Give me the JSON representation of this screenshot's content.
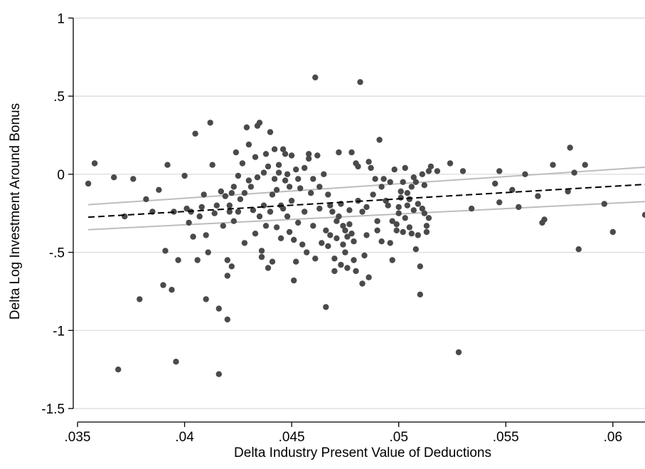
{
  "chart_data": {
    "type": "scatter",
    "title": "",
    "xlabel": "Delta Industry Present Value of Deductions",
    "ylabel": "Delta Log Investment Around Bonus",
    "xlim": [
      0.0348,
      0.0615
    ],
    "ylim": [
      -1.55,
      1.07
    ],
    "x_ticks": [
      0.035,
      0.04,
      0.045,
      0.05,
      0.055,
      0.06
    ],
    "x_tick_labels": [
      ".035",
      ".04",
      ".045",
      ".05",
      ".055",
      ".06"
    ],
    "y_ticks": [
      1,
      0.5,
      0,
      -0.5,
      -1,
      -1.5
    ],
    "y_tick_labels": [
      "1",
      ".5",
      "0",
      "-.5",
      "-1",
      "-1.5"
    ],
    "grid": true,
    "legend": "none",
    "colors": {
      "points": "#4a4a4a",
      "fit": "#000000",
      "ci": "#bdbdbd",
      "grid": "#d9d9d9"
    },
    "fit_line": {
      "x": [
        0.0355,
        0.0615
      ],
      "y": [
        -0.275,
        -0.065
      ]
    },
    "ci_upper": {
      "x": [
        0.0355,
        0.0615
      ],
      "y": [
        -0.195,
        0.045
      ]
    },
    "ci_lower": {
      "x": [
        0.0355,
        0.0615
      ],
      "y": [
        -0.355,
        -0.175
      ]
    },
    "points": [
      [
        0.0355,
        -0.06
      ],
      [
        0.0358,
        0.07
      ],
      [
        0.0367,
        -0.02
      ],
      [
        0.0369,
        -1.25
      ],
      [
        0.0372,
        -0.27
      ],
      [
        0.0376,
        -0.03
      ],
      [
        0.0379,
        -0.8
      ],
      [
        0.0382,
        -0.16
      ],
      [
        0.0385,
        -0.24
      ],
      [
        0.0388,
        -0.1
      ],
      [
        0.039,
        -0.71
      ],
      [
        0.0391,
        -0.49
      ],
      [
        0.0392,
        0.06
      ],
      [
        0.0394,
        -0.74
      ],
      [
        0.0395,
        -0.24
      ],
      [
        0.0396,
        -1.2
      ],
      [
        0.0397,
        -0.55
      ],
      [
        0.04,
        -0.01
      ],
      [
        0.0401,
        -0.22
      ],
      [
        0.0402,
        -0.31
      ],
      [
        0.0403,
        -0.24
      ],
      [
        0.0404,
        -0.4
      ],
      [
        0.0405,
        0.26
      ],
      [
        0.0406,
        -0.55
      ],
      [
        0.0407,
        -0.27
      ],
      [
        0.0408,
        -0.21
      ],
      [
        0.0409,
        -0.13
      ],
      [
        0.041,
        -0.8
      ],
      [
        0.041,
        -0.39
      ],
      [
        0.0411,
        -0.5
      ],
      [
        0.0412,
        0.33
      ],
      [
        0.0413,
        0.06
      ],
      [
        0.0414,
        -0.25
      ],
      [
        0.0415,
        -0.2
      ],
      [
        0.0416,
        -0.86
      ],
      [
        0.0416,
        -1.28
      ],
      [
        0.0417,
        -0.11
      ],
      [
        0.0418,
        -0.33
      ],
      [
        0.0419,
        -0.14
      ],
      [
        0.042,
        -0.55
      ],
      [
        0.042,
        -0.65
      ],
      [
        0.042,
        -0.93
      ],
      [
        0.0421,
        -0.2
      ],
      [
        0.0421,
        -0.24
      ],
      [
        0.0422,
        -0.59
      ],
      [
        0.0422,
        -0.12
      ],
      [
        0.0423,
        -0.08
      ],
      [
        0.0423,
        -0.3
      ],
      [
        0.0424,
        0.14
      ],
      [
        0.0425,
        -0.01
      ],
      [
        0.0425,
        -0.24
      ],
      [
        0.0426,
        -0.16
      ],
      [
        0.0427,
        0.07
      ],
      [
        0.0428,
        -0.12
      ],
      [
        0.0428,
        -0.44
      ],
      [
        0.0429,
        0.3
      ],
      [
        0.043,
        -0.04
      ],
      [
        0.043,
        0.19
      ],
      [
        0.0431,
        -0.08
      ],
      [
        0.0432,
        -0.23
      ],
      [
        0.0433,
        0.11
      ],
      [
        0.0433,
        -0.38
      ],
      [
        0.0434,
        -0.02
      ],
      [
        0.0434,
        0.31
      ],
      [
        0.0435,
        0.33
      ],
      [
        0.0435,
        -0.27
      ],
      [
        0.0436,
        -0.49
      ],
      [
        0.0436,
        -0.53
      ],
      [
        0.0437,
        0.01
      ],
      [
        0.0437,
        -0.2
      ],
      [
        0.0438,
        -0.33
      ],
      [
        0.0438,
        0.13
      ],
      [
        0.0439,
        0.05
      ],
      [
        0.0439,
        -0.6
      ],
      [
        0.044,
        -0.24
      ],
      [
        0.044,
        0.27
      ],
      [
        0.0441,
        -0.13
      ],
      [
        0.0441,
        -0.56
      ],
      [
        0.0442,
        0.16
      ],
      [
        0.0442,
        -0.03
      ],
      [
        0.0443,
        -0.1
      ],
      [
        0.0443,
        -0.34
      ],
      [
        0.0444,
        0.06
      ],
      [
        0.0444,
        0.01
      ],
      [
        0.0445,
        -0.2
      ],
      [
        0.0445,
        -0.41
      ],
      [
        0.0446,
        0.16
      ],
      [
        0.0446,
        -0.22
      ],
      [
        0.0447,
        -0.04
      ],
      [
        0.0447,
        0.13
      ],
      [
        0.0448,
        0.0
      ],
      [
        0.0448,
        -0.27
      ],
      [
        0.0449,
        -0.08
      ],
      [
        0.0449,
        -0.37
      ],
      [
        0.045,
        0.12
      ],
      [
        0.045,
        -0.17
      ],
      [
        0.0451,
        -0.42
      ],
      [
        0.0451,
        -0.68
      ],
      [
        0.0452,
        0.03
      ],
      [
        0.0452,
        -0.56
      ],
      [
        0.0453,
        -0.03
      ],
      [
        0.0453,
        -0.31
      ],
      [
        0.0454,
        -0.09
      ],
      [
        0.0455,
        -0.45
      ],
      [
        0.0456,
        0.04
      ],
      [
        0.0456,
        -0.24
      ],
      [
        0.0457,
        -0.5
      ],
      [
        0.0458,
        0.13
      ],
      [
        0.0458,
        0.1
      ],
      [
        0.0459,
        -0.12
      ],
      [
        0.046,
        -0.33
      ],
      [
        0.046,
        -0.03
      ],
      [
        0.0461,
        0.62
      ],
      [
        0.0461,
        -0.54
      ],
      [
        0.0462,
        0.12
      ],
      [
        0.0463,
        -0.08
      ],
      [
        0.0463,
        -0.22
      ],
      [
        0.0464,
        -0.44
      ],
      [
        0.0465,
        0.0
      ],
      [
        0.0466,
        -0.36
      ],
      [
        0.0466,
        -0.85
      ],
      [
        0.0467,
        -0.13
      ],
      [
        0.0467,
        -0.46
      ],
      [
        0.0468,
        -0.2
      ],
      [
        0.0468,
        -0.39
      ],
      [
        0.0469,
        -0.24
      ],
      [
        0.047,
        -0.54
      ],
      [
        0.047,
        -0.62
      ],
      [
        0.0471,
        -0.3
      ],
      [
        0.0471,
        -0.41
      ],
      [
        0.0472,
        -0.27
      ],
      [
        0.0472,
        0.14
      ],
      [
        0.0473,
        -0.58
      ],
      [
        0.0473,
        -0.19
      ],
      [
        0.0474,
        -0.33
      ],
      [
        0.0474,
        -0.45
      ],
      [
        0.0475,
        -0.36
      ],
      [
        0.0475,
        -0.5
      ],
      [
        0.0476,
        -0.4
      ],
      [
        0.0476,
        -0.6
      ],
      [
        0.0477,
        -0.23
      ],
      [
        0.0477,
        -0.32
      ],
      [
        0.0478,
        -0.38
      ],
      [
        0.0478,
        0.14
      ],
      [
        0.0479,
        -0.43
      ],
      [
        0.0479,
        -0.55
      ],
      [
        0.048,
        0.07
      ],
      [
        0.048,
        -0.62
      ],
      [
        0.0481,
        0.05
      ],
      [
        0.0481,
        -0.17
      ],
      [
        0.0482,
        0.59
      ],
      [
        0.0483,
        -0.24
      ],
      [
        0.0483,
        -0.7
      ],
      [
        0.0484,
        -0.52
      ],
      [
        0.0485,
        -0.21
      ],
      [
        0.0485,
        -0.39
      ],
      [
        0.0486,
        0.08
      ],
      [
        0.0486,
        -0.66
      ],
      [
        0.0487,
        0.04
      ],
      [
        0.0488,
        -0.13
      ],
      [
        0.0489,
        -0.03
      ],
      [
        0.049,
        -0.3
      ],
      [
        0.049,
        -0.36
      ],
      [
        0.0491,
        0.22
      ],
      [
        0.0492,
        -0.08
      ],
      [
        0.0492,
        -0.43
      ],
      [
        0.0493,
        -0.03
      ],
      [
        0.0494,
        -0.17
      ],
      [
        0.0495,
        -0.2
      ],
      [
        0.0496,
        -0.05
      ],
      [
        0.0496,
        -0.44
      ],
      [
        0.0497,
        -0.55
      ],
      [
        0.0497,
        -0.3
      ],
      [
        0.0498,
        0.03
      ],
      [
        0.0499,
        -0.36
      ],
      [
        0.0499,
        -0.32
      ],
      [
        0.05,
        -0.25
      ],
      [
        0.05,
        -0.21
      ],
      [
        0.0501,
        -0.15
      ],
      [
        0.0501,
        -0.11
      ],
      [
        0.0502,
        -0.05
      ],
      [
        0.0502,
        -0.37
      ],
      [
        0.0503,
        0.04
      ],
      [
        0.0503,
        -0.28
      ],
      [
        0.0504,
        -0.2
      ],
      [
        0.0504,
        -0.12
      ],
      [
        0.0505,
        -0.16
      ],
      [
        0.0505,
        -0.34
      ],
      [
        0.0506,
        -0.08
      ],
      [
        0.0506,
        -0.38
      ],
      [
        0.0507,
        -0.02
      ],
      [
        0.0507,
        -0.23
      ],
      [
        0.0508,
        -0.05
      ],
      [
        0.0508,
        -0.48
      ],
      [
        0.0509,
        -0.19
      ],
      [
        0.0509,
        -0.39
      ],
      [
        0.051,
        -0.59
      ],
      [
        0.051,
        -0.77
      ],
      [
        0.0511,
        0.0
      ],
      [
        0.0511,
        -0.22
      ],
      [
        0.0512,
        -0.07
      ],
      [
        0.0512,
        -0.25
      ],
      [
        0.0513,
        -0.33
      ],
      [
        0.0513,
        -0.37
      ],
      [
        0.0514,
        0.02
      ],
      [
        0.0514,
        -0.28
      ],
      [
        0.0515,
        0.05
      ],
      [
        0.0518,
        0.02
      ],
      [
        0.0524,
        0.07
      ],
      [
        0.0528,
        -1.14
      ],
      [
        0.053,
        0.02
      ],
      [
        0.0534,
        -0.22
      ],
      [
        0.0545,
        -0.06
      ],
      [
        0.0547,
        -0.18
      ],
      [
        0.0547,
        0.02
      ],
      [
        0.0553,
        -0.1
      ],
      [
        0.0556,
        -0.21
      ],
      [
        0.0559,
        0.0
      ],
      [
        0.0565,
        -0.14
      ],
      [
        0.0567,
        -0.31
      ],
      [
        0.0568,
        -0.29
      ],
      [
        0.0572,
        0.06
      ],
      [
        0.0579,
        -0.11
      ],
      [
        0.058,
        0.17
      ],
      [
        0.0582,
        0.01
      ],
      [
        0.0584,
        -0.48
      ],
      [
        0.0587,
        0.06
      ],
      [
        0.0596,
        -0.19
      ],
      [
        0.06,
        -0.37
      ],
      [
        0.0615,
        -0.26
      ]
    ]
  }
}
